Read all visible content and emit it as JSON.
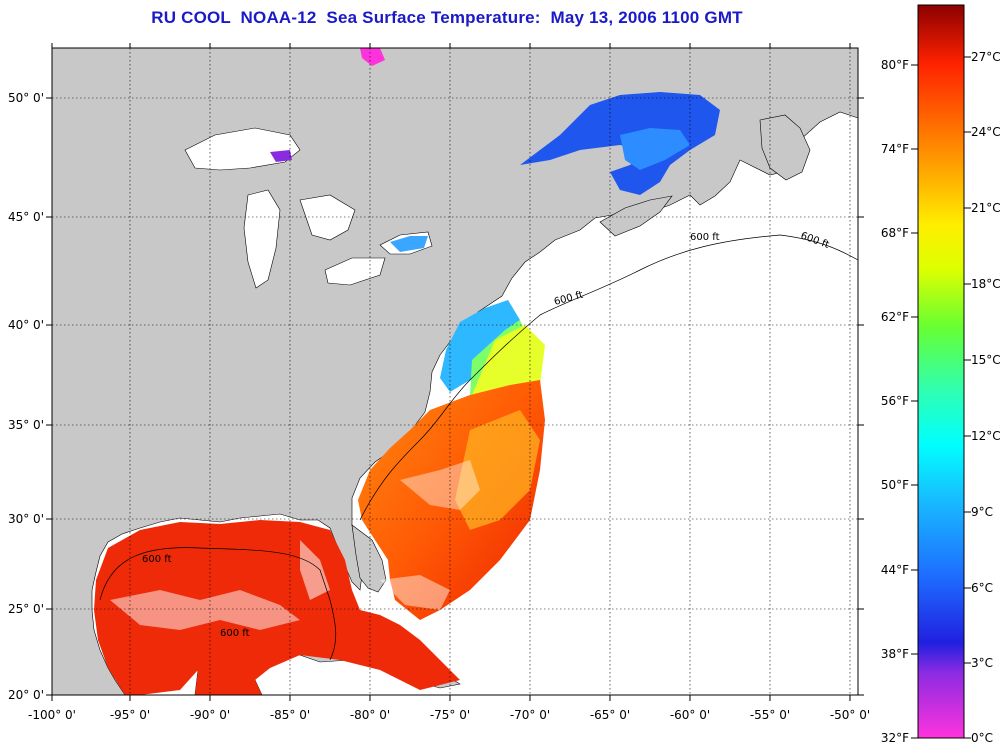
{
  "title": "RU COOL  NOAA-12  Sea Surface Temperature:  May 13, 2006 1100 GMT",
  "map": {
    "lon_labels": [
      "-100° 0'",
      "-95° 0'",
      "-90° 0'",
      "-85° 0'",
      "-80° 0'",
      "-75° 0'",
      "-70° 0'",
      "-65° 0'",
      "-60° 0'",
      "-55° 0'",
      "-50° 0'"
    ],
    "lat_labels": [
      "50° 0'",
      "45° 0'",
      "40° 0'",
      "35° 0'",
      "30° 0'",
      "25° 0'",
      "20° 0'"
    ],
    "contour_label": "600 ft",
    "colors": {
      "land": "#c8c8c8",
      "ocean_nodata": "#ffffff",
      "grid": "#000000"
    }
  },
  "colorbar": {
    "fahrenheit": [
      "80°F",
      "74°F",
      "68°F",
      "62°F",
      "56°F",
      "50°F",
      "44°F",
      "38°F",
      "32°F"
    ],
    "celsius": [
      "27°C",
      "24°C",
      "21°C",
      "18°C",
      "15°C",
      "12°C",
      "9°C",
      "6°C",
      "3°C",
      "0°C"
    ],
    "range_c": [
      0,
      29
    ]
  }
}
